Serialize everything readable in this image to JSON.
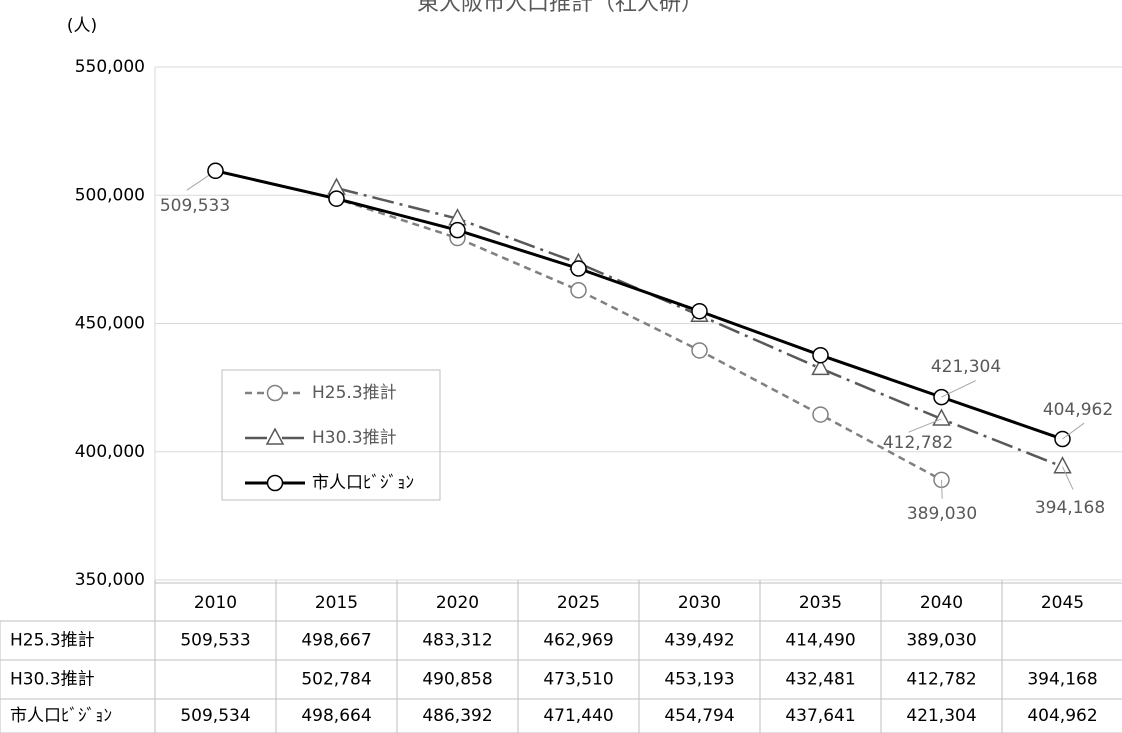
{
  "chart_data": {
    "type": "line",
    "title": "東大阪市人口推計（社人研）",
    "ylabel": "(人)",
    "categories": [
      "2010",
      "2015",
      "2020",
      "2025",
      "2030",
      "2035",
      "2040",
      "2045"
    ],
    "ylim": [
      350000,
      550000
    ],
    "yticks": [
      {
        "value": 350000,
        "label": "350,000"
      },
      {
        "value": 400000,
        "label": "400,000"
      },
      {
        "value": 450000,
        "label": "450,000"
      },
      {
        "value": 500000,
        "label": "500,000"
      },
      {
        "value": 550000,
        "label": "550,000"
      }
    ],
    "grid": true,
    "legend": "left",
    "series": [
      {
        "name": "H25.3推計",
        "color": "#808080",
        "dash": "dashed",
        "marker": "circle",
        "values": [
          509533,
          498667,
          483312,
          462969,
          439492,
          414490,
          389030,
          null
        ],
        "value_labels": [
          "509,533",
          null,
          null,
          null,
          null,
          null,
          "389,030",
          null
        ],
        "table": [
          "509,533",
          "498,667",
          "483,312",
          "462,969",
          "439,492",
          "414,490",
          "389,030",
          null
        ]
      },
      {
        "name": "H30.3推計",
        "color": "#595959",
        "dash": "dashdot",
        "marker": "triangle",
        "values": [
          null,
          502784,
          490858,
          473510,
          453193,
          432481,
          412782,
          394168
        ],
        "value_labels": [
          null,
          null,
          null,
          null,
          null,
          null,
          "412,782",
          "394,168"
        ],
        "table": [
          null,
          "502,784",
          "490,858",
          "473,510",
          "453,193",
          "432,481",
          "412,782",
          "394,168"
        ]
      },
      {
        "name": "市人口ﾋﾞｼﾞｮﾝ",
        "color": "#000000",
        "dash": "solid",
        "marker": "circle",
        "values": [
          509534,
          498664,
          486392,
          471440,
          454794,
          437641,
          421304,
          404962
        ],
        "value_labels": [
          null,
          null,
          null,
          null,
          null,
          null,
          "421,304",
          "404,962"
        ],
        "table": [
          "509,534",
          "498,664",
          "486,392",
          "471,440",
          "454,794",
          "437,641",
          "421,304",
          "404,962"
        ]
      }
    ]
  }
}
